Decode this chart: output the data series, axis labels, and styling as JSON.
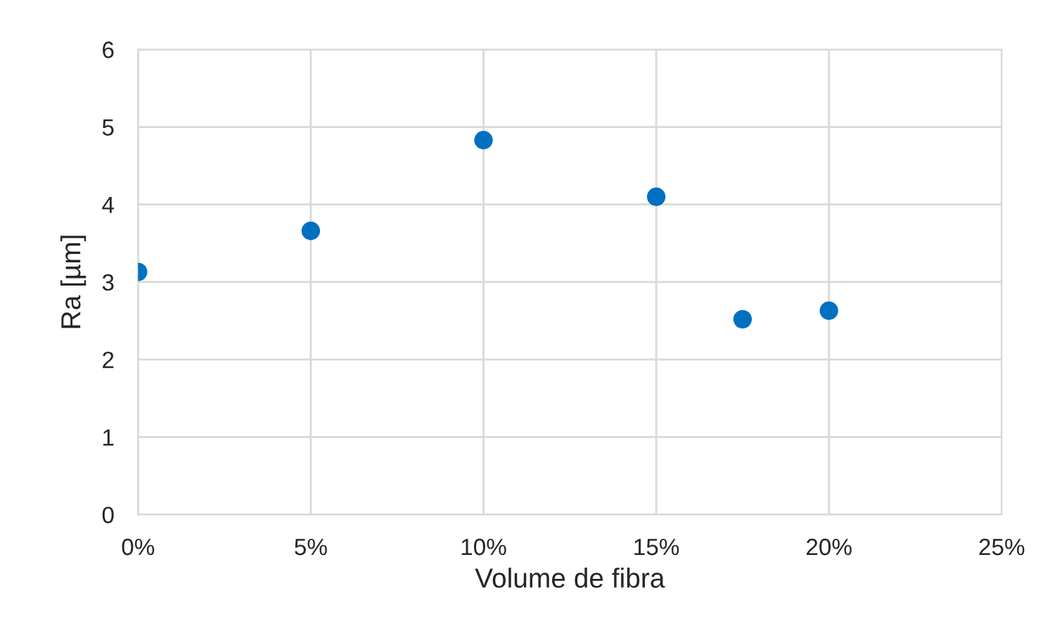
{
  "chart_data": {
    "type": "scatter",
    "xlabel": "Volume de fibra",
    "ylabel": "Ra [µm]",
    "x": [
      0,
      5,
      10,
      15,
      17.5,
      20
    ],
    "values": [
      3.13,
      3.66,
      4.83,
      4.1,
      2.52,
      2.63
    ],
    "color": "#0070c0",
    "marker": "circle",
    "xlim": [
      0,
      25
    ],
    "xticks": [
      {
        "value": 0,
        "label": "0%"
      },
      {
        "value": 5,
        "label": "5%"
      },
      {
        "value": 10,
        "label": "10%"
      },
      {
        "value": 15,
        "label": "15%"
      },
      {
        "value": 20,
        "label": "20%"
      },
      {
        "value": 25,
        "label": "25%"
      }
    ],
    "ylim": [
      0,
      6
    ],
    "yticks": [
      0,
      1,
      2,
      3,
      4,
      5,
      6
    ],
    "grid": true
  }
}
